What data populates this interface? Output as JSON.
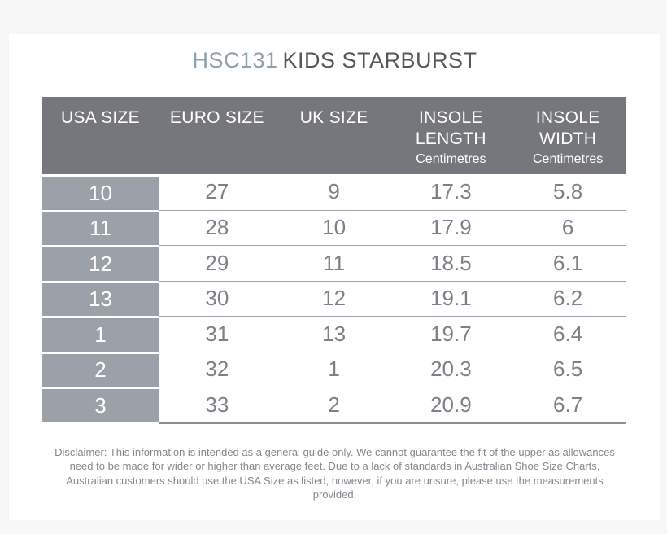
{
  "title": {
    "code": "HSC131",
    "name": "KIDS STARBURST"
  },
  "table": {
    "headers": [
      {
        "label": "USA SIZE",
        "sublabel": ""
      },
      {
        "label": "EURO SIZE",
        "sublabel": ""
      },
      {
        "label": "UK SIZE",
        "sublabel": ""
      },
      {
        "label": "INSOLE LENGTH",
        "sublabel": "Centimetres"
      },
      {
        "label": "INSOLE WIDTH",
        "sublabel": "Centimetres"
      }
    ]
  },
  "chart_data": {
    "type": "table",
    "title": "HSC131 KIDS STARBURST",
    "columns": [
      "USA SIZE",
      "EURO SIZE",
      "UK SIZE",
      "INSOLE LENGTH (Centimetres)",
      "INSOLE WIDTH (Centimetres)"
    ],
    "rows": [
      [
        10,
        27,
        9,
        17.3,
        5.8
      ],
      [
        11,
        28,
        10,
        17.9,
        6
      ],
      [
        12,
        29,
        11,
        18.5,
        6.1
      ],
      [
        13,
        30,
        12,
        19.1,
        6.2
      ],
      [
        1,
        31,
        13,
        19.7,
        6.4
      ],
      [
        2,
        32,
        1,
        20.3,
        6.5
      ],
      [
        3,
        33,
        2,
        20.9,
        6.7
      ]
    ]
  },
  "disclaimer": "Disclaimer: This information is intended as a general guide only. We cannot guarantee the fit of the upper as allowances need to be made for wider or higher than average feet. Due to a lack of standards in Australian Shoe Size Charts, Australian customers should use the USA Size as listed, however, if you are unsure, please use the measurements provided.",
  "colors": {
    "page_background": "#f7f6f6",
    "card_background": "#ffffff",
    "header_background": "#75777c",
    "label_column_background": "#9ba1a9",
    "title_code": "#8fa0ad",
    "title_name": "#55565a",
    "body_text": "#7d8086",
    "disclaimer_text": "#84878d",
    "row_border": "#9ca2a9"
  }
}
